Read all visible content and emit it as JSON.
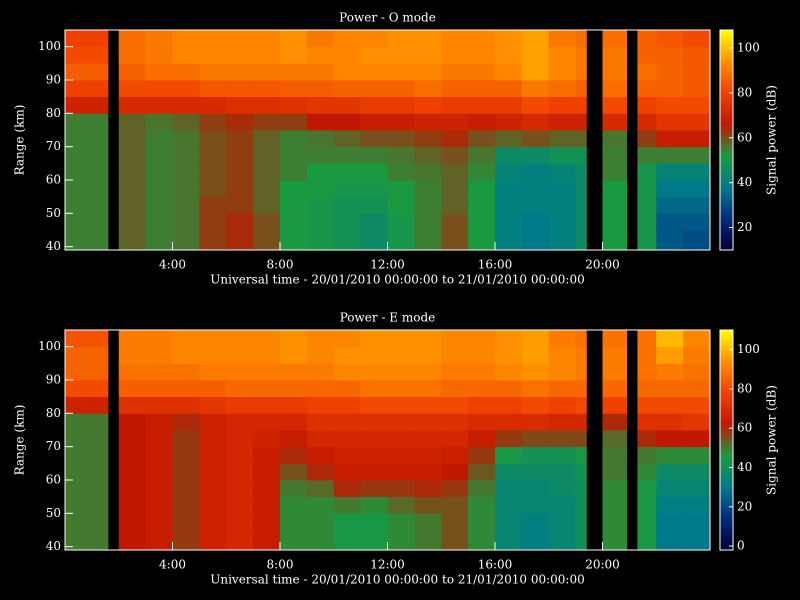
{
  "chart_data": [
    {
      "type": "heatmap",
      "title": "Power - O mode",
      "xlabel": "Universal time - 20/01/2010 00:00:00 to 21/01/2010 00:00:00",
      "ylabel": "Range (km)",
      "colorbar_label": "Signal power (dB)",
      "xlim": [
        0,
        24
      ],
      "ylim": [
        39,
        105
      ],
      "xticks": [
        {
          "value": 4,
          "label": "4:00"
        },
        {
          "value": 8,
          "label": "8:00"
        },
        {
          "value": 12,
          "label": "12:00"
        },
        {
          "value": 16,
          "label": "16:00"
        },
        {
          "value": 20,
          "label": "20:00"
        }
      ],
      "yticks": [
        40,
        50,
        60,
        70,
        80,
        90,
        100
      ],
      "clim": [
        10,
        108
      ],
      "cticks": [
        20,
        40,
        60,
        80,
        100
      ],
      "colormap": [
        "#000030",
        "#002a80",
        "#007a8a",
        "#1a9a40",
        "#c01800",
        "#f04000",
        "#ff9000",
        "#ffff00"
      ],
      "x_edges": [
        0,
        1.6,
        2,
        3,
        4,
        5,
        6,
        7,
        8,
        9,
        10,
        11,
        12,
        13,
        14,
        15,
        16,
        17,
        18,
        19,
        19.4,
        20,
        20.9,
        21.3,
        22,
        23,
        24
      ],
      "y_edges": [
        39,
        45,
        50,
        55,
        60,
        65,
        70,
        75,
        80,
        85,
        90,
        95,
        100,
        105
      ],
      "values": [
        [
          55,
          55,
          55,
          55,
          55,
          55,
          55,
          55,
          70,
          80,
          85,
          82,
          80
        ],
        [
          null,
          null,
          null,
          null,
          null,
          null,
          null,
          null,
          null,
          null,
          null,
          null,
          null
        ],
        [
          58,
          58,
          58,
          58,
          58,
          58,
          58,
          58,
          72,
          82,
          86,
          88,
          88
        ],
        [
          55,
          55,
          55,
          55,
          55,
          55,
          55,
          56,
          72,
          82,
          88,
          90,
          90
        ],
        [
          56,
          56,
          56,
          56,
          56,
          56,
          56,
          58,
          72,
          82,
          88,
          92,
          92
        ],
        [
          62,
          62,
          62,
          60,
          60,
          60,
          60,
          62,
          72,
          84,
          90,
          92,
          92
        ],
        [
          64,
          64,
          62,
          62,
          62,
          62,
          62,
          64,
          74,
          84,
          90,
          92,
          92
        ],
        [
          60,
          60,
          58,
          58,
          58,
          58,
          58,
          62,
          74,
          84,
          90,
          92,
          92
        ],
        [
          52,
          52,
          52,
          52,
          55,
          55,
          55,
          62,
          75,
          85,
          90,
          94,
          94
        ],
        [
          50,
          50,
          50,
          52,
          52,
          55,
          56,
          66,
          76,
          85,
          90,
          92,
          90
        ],
        [
          48,
          48,
          48,
          50,
          52,
          55,
          58,
          66,
          76,
          86,
          92,
          92,
          92
        ],
        [
          45,
          45,
          48,
          50,
          52,
          55,
          60,
          68,
          78,
          86,
          92,
          94,
          92
        ],
        [
          50,
          50,
          52,
          52,
          55,
          56,
          60,
          68,
          78,
          86,
          92,
          94,
          94
        ],
        [
          55,
          55,
          55,
          55,
          56,
          58,
          62,
          70,
          80,
          88,
          92,
          94,
          94
        ],
        [
          60,
          60,
          58,
          58,
          58,
          60,
          64,
          70,
          78,
          86,
          90,
          92,
          92
        ],
        [
          52,
          52,
          52,
          52,
          54,
          56,
          60,
          68,
          78,
          86,
          90,
          92,
          92
        ],
        [
          40,
          40,
          40,
          40,
          42,
          45,
          58,
          70,
          78,
          86,
          92,
          94,
          94
        ],
        [
          38,
          38,
          40,
          40,
          40,
          45,
          60,
          72,
          82,
          90,
          96,
          96,
          96
        ],
        [
          40,
          40,
          40,
          40,
          42,
          48,
          58,
          70,
          80,
          88,
          92,
          92,
          90
        ],
        [
          45,
          45,
          45,
          45,
          45,
          48,
          58,
          70,
          80,
          86,
          90,
          90,
          88
        ],
        [
          null,
          null,
          null,
          null,
          null,
          null,
          null,
          null,
          null,
          null,
          null,
          null,
          null
        ],
        [
          52,
          52,
          52,
          52,
          55,
          55,
          56,
          72,
          82,
          88,
          90,
          90,
          88
        ],
        [
          null,
          null,
          null,
          null,
          null,
          null,
          null,
          null,
          null,
          null,
          null,
          null,
          null
        ],
        [
          50,
          50,
          50,
          50,
          50,
          55,
          62,
          72,
          80,
          86,
          88,
          86,
          86
        ],
        [
          32,
          32,
          35,
          38,
          42,
          55,
          68,
          76,
          82,
          86,
          86,
          86,
          84
        ],
        [
          30,
          32,
          35,
          38,
          42,
          55,
          68,
          76,
          82,
          84,
          84,
          84,
          82
        ]
      ]
    },
    {
      "type": "heatmap",
      "title": "Power - E mode",
      "xlabel": "Universal time - 20/01/2010 00:00:00 to 21/01/2010 00:00:00",
      "ylabel": "Range (km)",
      "colorbar_label": "Signal power (dB)",
      "xlim": [
        0,
        24
      ],
      "ylim": [
        39,
        105
      ],
      "xticks": [
        {
          "value": 4,
          "label": "4:00"
        },
        {
          "value": 8,
          "label": "8:00"
        },
        {
          "value": 12,
          "label": "12:00"
        },
        {
          "value": 16,
          "label": "16:00"
        },
        {
          "value": 20,
          "label": "20:00"
        }
      ],
      "yticks": [
        40,
        50,
        60,
        70,
        80,
        90,
        100
      ],
      "clim": [
        -2,
        110
      ],
      "cticks": [
        0,
        20,
        40,
        60,
        80,
        100
      ],
      "colormap": [
        "#000030",
        "#002a80",
        "#007a8a",
        "#1a9a40",
        "#c01800",
        "#f04000",
        "#ff9000",
        "#ffff00"
      ],
      "x_edges": [
        0,
        1.6,
        2,
        3,
        4,
        5,
        6,
        7,
        8,
        9,
        10,
        11,
        12,
        13,
        14,
        15,
        16,
        17,
        18,
        19,
        19.4,
        20,
        20.9,
        21.3,
        22,
        23,
        24
      ],
      "y_edges": [
        39,
        45,
        50,
        55,
        60,
        65,
        70,
        75,
        80,
        85,
        90,
        95,
        100,
        105
      ],
      "values": [
        [
          50,
          50,
          50,
          50,
          50,
          50,
          50,
          50,
          66,
          80,
          85,
          85,
          82
        ],
        [
          null,
          null,
          null,
          null,
          null,
          null,
          null,
          null,
          null,
          null,
          null,
          null,
          null
        ],
        [
          62,
          62,
          62,
          62,
          62,
          62,
          62,
          62,
          72,
          84,
          88,
          90,
          90
        ],
        [
          64,
          64,
          64,
          64,
          64,
          64,
          64,
          64,
          72,
          84,
          88,
          90,
          90
        ],
        [
          58,
          58,
          58,
          58,
          58,
          58,
          58,
          60,
          72,
          84,
          88,
          92,
          92
        ],
        [
          66,
          66,
          66,
          66,
          66,
          66,
          66,
          66,
          74,
          84,
          90,
          92,
          92
        ],
        [
          68,
          68,
          68,
          68,
          68,
          68,
          68,
          68,
          76,
          86,
          90,
          92,
          92
        ],
        [
          64,
          64,
          64,
          64,
          64,
          64,
          66,
          68,
          76,
          86,
          90,
          92,
          92
        ],
        [
          48,
          48,
          48,
          50,
          55,
          60,
          64,
          68,
          76,
          86,
          90,
          94,
          94
        ],
        [
          48,
          48,
          48,
          52,
          60,
          64,
          68,
          72,
          78,
          86,
          90,
          92,
          92
        ],
        [
          45,
          45,
          50,
          60,
          64,
          66,
          68,
          72,
          78,
          86,
          92,
          94,
          92
        ],
        [
          45,
          45,
          48,
          58,
          64,
          66,
          68,
          72,
          80,
          88,
          92,
          94,
          94
        ],
        [
          48,
          48,
          52,
          58,
          64,
          66,
          68,
          72,
          80,
          88,
          92,
          94,
          94
        ],
        [
          50,
          50,
          55,
          60,
          64,
          66,
          68,
          72,
          80,
          88,
          92,
          94,
          94
        ],
        [
          55,
          55,
          55,
          58,
          62,
          65,
          68,
          72,
          80,
          86,
          90,
          92,
          92
        ],
        [
          48,
          48,
          48,
          50,
          54,
          58,
          64,
          70,
          78,
          86,
          90,
          92,
          92
        ],
        [
          35,
          35,
          35,
          35,
          38,
          45,
          58,
          70,
          78,
          86,
          92,
          94,
          94
        ],
        [
          32,
          32,
          35,
          35,
          38,
          42,
          56,
          70,
          80,
          88,
          94,
          96,
          96
        ],
        [
          35,
          35,
          35,
          38,
          38,
          42,
          56,
          68,
          78,
          86,
          92,
          92,
          90
        ],
        [
          40,
          40,
          40,
          40,
          42,
          45,
          56,
          68,
          80,
          86,
          90,
          90,
          88
        ],
        [
          null,
          null,
          null,
          null,
          null,
          null,
          null,
          null,
          null,
          null,
          null,
          null,
          null
        ],
        [
          48,
          48,
          48,
          48,
          50,
          50,
          52,
          60,
          78,
          86,
          90,
          90,
          88
        ],
        [
          null,
          null,
          null,
          null,
          null,
          null,
          null,
          null,
          null,
          null,
          null,
          null,
          null
        ],
        [
          45,
          45,
          45,
          45,
          48,
          50,
          60,
          72,
          80,
          86,
          88,
          88,
          88
        ],
        [
          30,
          30,
          32,
          35,
          38,
          48,
          62,
          72,
          80,
          86,
          90,
          96,
          100
        ],
        [
          30,
          30,
          32,
          35,
          38,
          48,
          62,
          74,
          80,
          86,
          88,
          90,
          92
        ]
      ]
    }
  ]
}
